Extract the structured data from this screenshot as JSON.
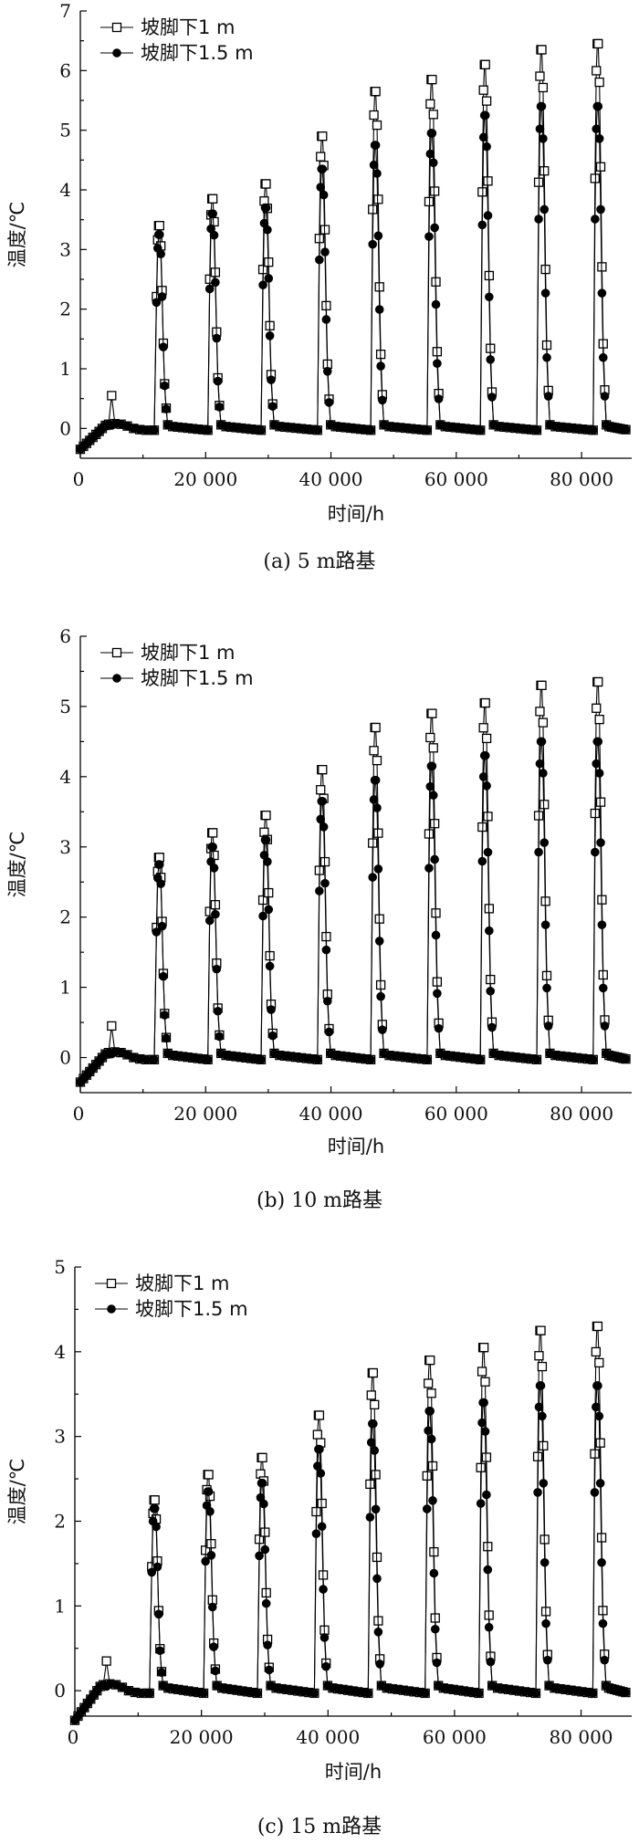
{
  "chart_data": [
    {
      "type": "line",
      "caption": "(a) 5 m路基",
      "xlabel": "时间/h",
      "ylabel": "温度/℃",
      "xlim": [
        0,
        88000
      ],
      "ylim": [
        -0.5,
        7
      ],
      "x_ticks": [
        0,
        20000,
        40000,
        60000,
        80000
      ],
      "x_tick_labels": [
        "0",
        "20 000",
        "40 000",
        "60 000",
        "80 000"
      ],
      "y_ticks": [
        0,
        1,
        2,
        3,
        4,
        5,
        6,
        7
      ],
      "y_tick_labels": [
        "0",
        "1",
        "2",
        "3",
        "4",
        "5",
        "6",
        "7"
      ],
      "legend_position": "top-left",
      "peak_times": [
        12500,
        21000,
        29500,
        38500,
        47000,
        56000,
        64500,
        73500,
        82500
      ],
      "spike": {
        "x": 5000,
        "y": 0.55
      },
      "series": [
        {
          "name": "坡脚下1 m",
          "marker": "open-square",
          "peaks": [
            3.4,
            3.85,
            4.1,
            4.9,
            5.65,
            5.85,
            6.1,
            6.35,
            6.45
          ]
        },
        {
          "name": "坡脚下1.5 m",
          "marker": "filled-circle",
          "peaks": [
            3.25,
            3.6,
            3.7,
            4.35,
            4.75,
            4.95,
            5.25,
            5.4,
            5.4
          ]
        }
      ]
    },
    {
      "type": "line",
      "caption": "(b) 10 m路基",
      "xlabel": "时间/h",
      "ylabel": "温度/℃",
      "xlim": [
        0,
        88000
      ],
      "ylim": [
        -0.5,
        6
      ],
      "x_ticks": [
        0,
        20000,
        40000,
        60000,
        80000
      ],
      "x_tick_labels": [
        "0",
        "20 000",
        "40 000",
        "60 000",
        "80 000"
      ],
      "y_ticks": [
        0,
        1,
        2,
        3,
        4,
        5,
        6
      ],
      "y_tick_labels": [
        "0",
        "1",
        "2",
        "3",
        "4",
        "5",
        "6"
      ],
      "legend_position": "top-left",
      "peak_times": [
        12500,
        21000,
        29500,
        38500,
        47000,
        56000,
        64500,
        73500,
        82500
      ],
      "spike": {
        "x": 5000,
        "y": 0.45
      },
      "series": [
        {
          "name": "坡脚下1 m",
          "marker": "open-square",
          "peaks": [
            2.85,
            3.2,
            3.45,
            4.1,
            4.7,
            4.9,
            5.05,
            5.3,
            5.35
          ]
        },
        {
          "name": "坡脚下1.5 m",
          "marker": "filled-circle",
          "peaks": [
            2.75,
            3.0,
            3.1,
            3.65,
            3.95,
            4.15,
            4.3,
            4.5,
            4.5
          ]
        }
      ]
    },
    {
      "type": "line",
      "caption": "(c) 15 m路基",
      "xlabel": "时间/h",
      "ylabel": "温度/℃",
      "xlim": [
        0,
        88000
      ],
      "ylim": [
        -0.3,
        5
      ],
      "x_ticks": [
        0,
        20000,
        40000,
        60000,
        80000
      ],
      "x_tick_labels": [
        "0",
        "20 000",
        "40 000",
        "60 000",
        "80 000"
      ],
      "y_ticks": [
        0,
        1,
        2,
        3,
        4,
        5
      ],
      "y_tick_labels": [
        "0",
        "1",
        "2",
        "3",
        "4",
        "5"
      ],
      "legend_position": "top-left",
      "peak_times": [
        12500,
        21000,
        29500,
        38500,
        47000,
        56000,
        64500,
        73500,
        82500
      ],
      "spike": {
        "x": 5000,
        "y": 0.35
      },
      "series": [
        {
          "name": "坡脚下1 m",
          "marker": "open-square",
          "peaks": [
            2.25,
            2.55,
            2.75,
            3.25,
            3.75,
            3.9,
            4.05,
            4.25,
            4.3
          ]
        },
        {
          "name": "坡脚下1.5 m",
          "marker": "filled-circle",
          "peaks": [
            2.15,
            2.35,
            2.45,
            2.85,
            3.15,
            3.3,
            3.4,
            3.6,
            3.6
          ]
        }
      ]
    }
  ]
}
